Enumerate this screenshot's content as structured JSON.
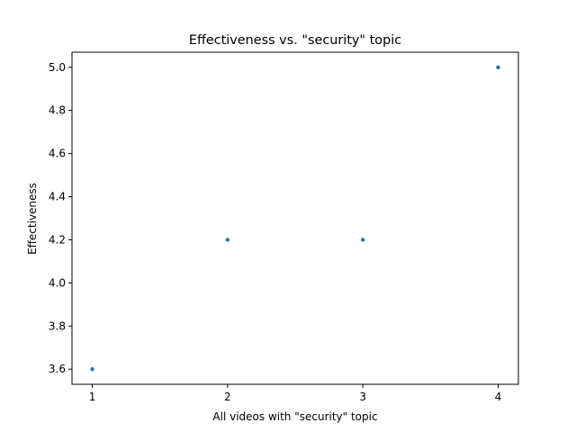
{
  "chart_data": {
    "type": "scatter",
    "title": "Effectiveness vs. \"security\" topic",
    "xlabel": "All videos with \"security\" topic",
    "ylabel": "Effectiveness",
    "x": [
      1,
      2,
      3,
      4
    ],
    "y": [
      3.6,
      4.2,
      4.2,
      5.0
    ],
    "xticks": [
      1,
      2,
      3,
      4
    ],
    "xtick_labels": [
      "1",
      "2",
      "3",
      "4"
    ],
    "yticks": [
      3.6,
      3.8,
      4.0,
      4.2,
      4.4,
      4.6,
      4.8,
      5.0
    ],
    "ytick_labels": [
      "3.6",
      "3.8",
      "4.0",
      "4.2",
      "4.4",
      "4.6",
      "4.8",
      "5.0"
    ],
    "xlim": [
      0.85,
      4.15
    ],
    "ylim": [
      3.53,
      5.07
    ],
    "grid": false,
    "marker_color": "#1f77b4"
  }
}
